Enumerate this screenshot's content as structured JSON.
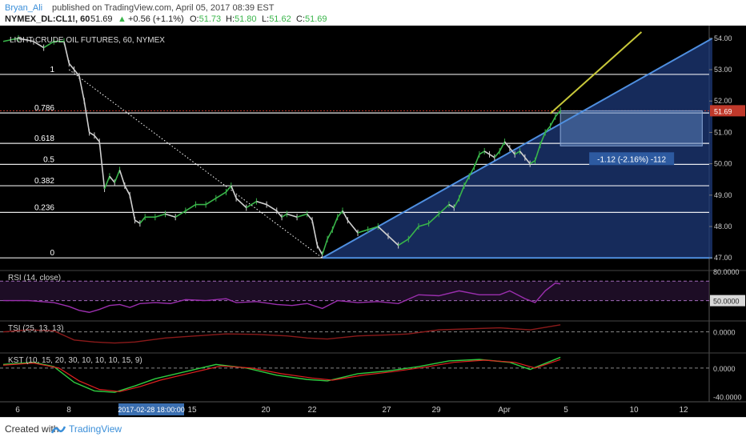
{
  "header": {
    "author": "Bryan_Ali",
    "published_text": "published on TradingView.com, April 05, 2017 08:39 EST",
    "symbol": "NYMEX_DL:CL1!, 60",
    "last": "51.69",
    "change": "+0.56 (+1.1%)",
    "ohlc": {
      "o_label": "O:",
      "o": "51.73",
      "h_label": "H:",
      "h": "51.80",
      "l_label": "L:",
      "l": "51.62",
      "c_label": "C:",
      "c": "51.69"
    }
  },
  "footer": {
    "created_with": "Created with",
    "brand": "TradingView"
  },
  "colors": {
    "background": "#000000",
    "up": "#39b54a",
    "down": "#d0d0d0",
    "fib_line": "#ffffff",
    "channel": "#4f8fe0",
    "channel_fill": "#1e3a7a",
    "projection": "#c8c83a",
    "price_tag": "#c0392b",
    "rsi": "#9b2fae",
    "tsi": "#8b1a1a",
    "kst": "#2ecc40",
    "kst_signal": "#e02020",
    "author": "#3b8fd9",
    "brand": "#3b8fd9"
  },
  "chart_data": {
    "type": "line",
    "title": "LIGHT CRUDE OIL FUTURES, 60, NYMEX",
    "price_axis": {
      "ticks": [
        "54.00",
        "53.00",
        "52.00",
        "51.00",
        "50.00",
        "49.00",
        "48.00",
        "47.00"
      ],
      "ylim": [
        46.75,
        54.2
      ],
      "current_price": "51.69"
    },
    "x_axis": {
      "ticks": [
        "6",
        "8",
        "15",
        "20",
        "22",
        "27",
        "29",
        "Apr",
        "5",
        "10",
        "12"
      ],
      "cursor_label": "2017-02-28 18:00:00"
    },
    "fib_levels": [
      {
        "label": "1",
        "price": 52.85
      },
      {
        "label": "0.786",
        "price": 51.62
      },
      {
        "label": "0.618",
        "price": 50.65
      },
      {
        "label": "0.5",
        "price": 49.98
      },
      {
        "label": "0.382",
        "price": 49.3
      },
      {
        "label": "0.236",
        "price": 48.45
      },
      {
        "label": "0",
        "price": 47.0
      }
    ],
    "price_path": [
      [
        0,
        53.9
      ],
      [
        3,
        54.0
      ],
      [
        6,
        53.9
      ],
      [
        8,
        53.7
      ],
      [
        10,
        53.9
      ],
      [
        12,
        53.9
      ],
      [
        13,
        53.2
      ],
      [
        14,
        53.0
      ],
      [
        15,
        52.8
      ],
      [
        16,
        52.0
      ],
      [
        17,
        51.0
      ],
      [
        18,
        50.9
      ],
      [
        19,
        50.7
      ],
      [
        20,
        49.2
      ],
      [
        21,
        49.6
      ],
      [
        22,
        49.4
      ],
      [
        23,
        49.8
      ],
      [
        24,
        49.3
      ],
      [
        25,
        49.0
      ],
      [
        26,
        48.2
      ],
      [
        27,
        48.1
      ],
      [
        28,
        48.3
      ],
      [
        30,
        48.3
      ],
      [
        32,
        48.4
      ],
      [
        34,
        48.3
      ],
      [
        36,
        48.5
      ],
      [
        38,
        48.7
      ],
      [
        40,
        48.7
      ],
      [
        42,
        48.9
      ],
      [
        44,
        49.1
      ],
      [
        45,
        49.3
      ],
      [
        46,
        48.9
      ],
      [
        48,
        48.6
      ],
      [
        50,
        48.8
      ],
      [
        52,
        48.7
      ],
      [
        54,
        48.5
      ],
      [
        55,
        48.3
      ],
      [
        56,
        48.4
      ],
      [
        58,
        48.3
      ],
      [
        60,
        48.4
      ],
      [
        61,
        48.2
      ],
      [
        62,
        47.4
      ],
      [
        63,
        47.1
      ],
      [
        64,
        47.6
      ],
      [
        65,
        47.9
      ],
      [
        66,
        48.3
      ],
      [
        67,
        48.5
      ],
      [
        68,
        48.2
      ],
      [
        70,
        47.8
      ],
      [
        72,
        47.9
      ],
      [
        74,
        48.0
      ],
      [
        76,
        47.7
      ],
      [
        78,
        47.4
      ],
      [
        80,
        47.6
      ],
      [
        82,
        48.0
      ],
      [
        84,
        48.1
      ],
      [
        86,
        48.4
      ],
      [
        88,
        48.7
      ],
      [
        89,
        48.6
      ],
      [
        90,
        48.9
      ],
      [
        91,
        49.3
      ],
      [
        92,
        49.6
      ],
      [
        93,
        49.9
      ],
      [
        94,
        50.3
      ],
      [
        95,
        50.4
      ],
      [
        96,
        50.3
      ],
      [
        97,
        50.2
      ],
      [
        98,
        50.4
      ],
      [
        99,
        50.7
      ],
      [
        100,
        50.5
      ],
      [
        101,
        50.3
      ],
      [
        102,
        50.4
      ],
      [
        103,
        50.2
      ],
      [
        104,
        50.0
      ],
      [
        105,
        50.1
      ],
      [
        106,
        50.6
      ],
      [
        107,
        51.0
      ],
      [
        108,
        51.2
      ],
      [
        109,
        51.5
      ],
      [
        110,
        51.7
      ]
    ],
    "channel": {
      "lower": [
        [
          63,
          47.0
        ],
        [
          140,
          47.0
        ]
      ],
      "upper": [
        [
          63,
          47.0
        ],
        [
          140,
          54.0
        ]
      ]
    },
    "projection_line": [
      [
        108,
        51.6
      ],
      [
        126,
        54.2
      ]
    ],
    "diagonal_line": [
      [
        13,
        53.0
      ],
      [
        63,
        47.0
      ]
    ],
    "measure_box": {
      "label": "-1.12 (-2.16%) -112",
      "x": [
        110,
        138
      ],
      "y": [
        50.57,
        51.69
      ]
    },
    "indicators": [
      {
        "name": "RSI (14, close)",
        "ticks": [
          "80.0000",
          "50.0000"
        ],
        "ylim": [
          30,
          80
        ],
        "band": [
          70,
          50
        ],
        "values": [
          [
            0,
            50
          ],
          [
            5,
            50
          ],
          [
            10,
            48
          ],
          [
            13,
            44
          ],
          [
            15,
            40
          ],
          [
            17,
            38
          ],
          [
            19,
            41
          ],
          [
            21,
            45
          ],
          [
            23,
            46
          ],
          [
            25,
            43
          ],
          [
            27,
            47
          ],
          [
            30,
            48
          ],
          [
            33,
            47
          ],
          [
            36,
            51
          ],
          [
            40,
            50
          ],
          [
            44,
            52
          ],
          [
            46,
            48
          ],
          [
            50,
            49
          ],
          [
            54,
            46
          ],
          [
            57,
            45
          ],
          [
            60,
            47
          ],
          [
            63,
            42
          ],
          [
            66,
            50
          ],
          [
            70,
            48
          ],
          [
            74,
            49
          ],
          [
            78,
            47
          ],
          [
            82,
            56
          ],
          [
            86,
            55
          ],
          [
            90,
            60
          ],
          [
            94,
            56
          ],
          [
            98,
            56
          ],
          [
            100,
            60
          ],
          [
            103,
            52
          ],
          [
            105,
            48
          ],
          [
            107,
            60
          ],
          [
            109,
            68
          ],
          [
            110,
            67
          ]
        ]
      },
      {
        "name": "TSI (25, 13, 13)",
        "ticks": [
          "0.0000"
        ],
        "ylim": [
          -40,
          20
        ],
        "values": [
          [
            0,
            0
          ],
          [
            5,
            4
          ],
          [
            10,
            2
          ],
          [
            14,
            -16
          ],
          [
            18,
            -20
          ],
          [
            22,
            -22
          ],
          [
            26,
            -20
          ],
          [
            32,
            -12
          ],
          [
            38,
            -8
          ],
          [
            44,
            -4
          ],
          [
            50,
            -5
          ],
          [
            56,
            -8
          ],
          [
            60,
            -12
          ],
          [
            64,
            -14
          ],
          [
            70,
            -8
          ],
          [
            76,
            -6
          ],
          [
            80,
            -4
          ],
          [
            86,
            4
          ],
          [
            92,
            6
          ],
          [
            98,
            8
          ],
          [
            104,
            4
          ],
          [
            110,
            14
          ]
        ]
      },
      {
        "name": "KST (10, 15, 20, 30, 10, 10, 10, 15, 9)",
        "ticks": [
          "0.0000",
          "-40.0000"
        ],
        "ylim": [
          -45,
          20
        ],
        "values": [
          [
            0,
            5
          ],
          [
            6,
            8
          ],
          [
            10,
            2
          ],
          [
            14,
            -20
          ],
          [
            18,
            -32
          ],
          [
            22,
            -34
          ],
          [
            26,
            -25
          ],
          [
            30,
            -15
          ],
          [
            36,
            -5
          ],
          [
            42,
            5
          ],
          [
            48,
            0
          ],
          [
            54,
            -10
          ],
          [
            60,
            -16
          ],
          [
            64,
            -18
          ],
          [
            70,
            -8
          ],
          [
            76,
            -4
          ],
          [
            82,
            2
          ],
          [
            88,
            10
          ],
          [
            94,
            12
          ],
          [
            100,
            8
          ],
          [
            104,
            -2
          ],
          [
            110,
            15
          ]
        ],
        "signal": [
          [
            0,
            4
          ],
          [
            6,
            7
          ],
          [
            11,
            0
          ],
          [
            15,
            -18
          ],
          [
            19,
            -30
          ],
          [
            23,
            -33
          ],
          [
            27,
            -26
          ],
          [
            31,
            -17
          ],
          [
            37,
            -7
          ],
          [
            43,
            3
          ],
          [
            49,
            0
          ],
          [
            55,
            -8
          ],
          [
            61,
            -14
          ],
          [
            65,
            -17
          ],
          [
            71,
            -10
          ],
          [
            77,
            -5
          ],
          [
            83,
            1
          ],
          [
            89,
            8
          ],
          [
            95,
            11
          ],
          [
            101,
            8
          ],
          [
            105,
            0
          ],
          [
            110,
            12
          ]
        ]
      }
    ]
  }
}
